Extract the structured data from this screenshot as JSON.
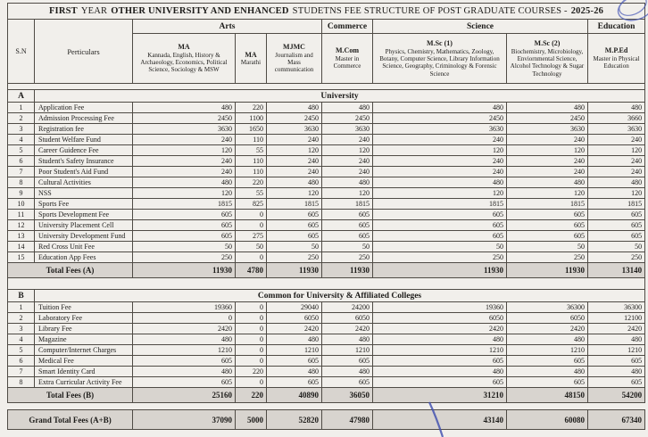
{
  "title": {
    "t1": "FIRST",
    "t2": "YEAR",
    "t3": "OTHER UNIVERSITY AND ENHANCED",
    "t4": "STUDETNS FEE STRUCTURE OF POST GRADUATE COURSES -",
    "t5": "2025-26"
  },
  "header": {
    "sn_label": "S.N",
    "particulars_label": "Perticulars",
    "group_arts": "Arts",
    "group_commerce": "Commerce",
    "group_science": "Science",
    "group_education": "Education",
    "courses": [
      {
        "title": "MA",
        "subtitle": "Kannada, English, History & Archaeology, Economics, Political Science, Sociology & MSW"
      },
      {
        "title": "MA",
        "subtitle": "Marathi"
      },
      {
        "title": "MJMC",
        "subtitle": "Journalism and Mass communication"
      },
      {
        "title": "M.Com",
        "subtitle": "Master in Commerce"
      },
      {
        "title": "M.Sc (1)",
        "subtitle": "Physics, Chemistry, Mathematics, Zoology, Botany, Computer Science, Library Information Science, Geography, Criminology & Forensic Science"
      },
      {
        "title": "M.Sc (2)",
        "subtitle": "Biochemistry, Microbiology, Enviornmental Science, Alcohol Technology & Sugar Technology"
      },
      {
        "title": "M.P.Ed",
        "subtitle": "Master in Physical Education"
      }
    ]
  },
  "section_a": {
    "code": "A",
    "heading": "University",
    "rows": [
      {
        "sn": "1",
        "label": "Application Fee",
        "values": [
          "480",
          "220",
          "480",
          "480",
          "480",
          "480",
          "480"
        ]
      },
      {
        "sn": "2",
        "label": "Admission Processing Fee",
        "values": [
          "2450",
          "1100",
          "2450",
          "2450",
          "2450",
          "2450",
          "3660"
        ]
      },
      {
        "sn": "3",
        "label": "Registration fee",
        "values": [
          "3630",
          "1650",
          "3630",
          "3630",
          "3630",
          "3630",
          "3630"
        ]
      },
      {
        "sn": "4",
        "label": "Student Welfare Fund",
        "values": [
          "240",
          "110",
          "240",
          "240",
          "240",
          "240",
          "240"
        ]
      },
      {
        "sn": "5",
        "label": "Career Guidence Fee",
        "values": [
          "120",
          "55",
          "120",
          "120",
          "120",
          "120",
          "120"
        ]
      },
      {
        "sn": "6",
        "label": "Student's Safety Insurance",
        "values": [
          "240",
          "110",
          "240",
          "240",
          "240",
          "240",
          "240"
        ]
      },
      {
        "sn": "7",
        "label": "Poor Student's Aid Fund",
        "values": [
          "240",
          "110",
          "240",
          "240",
          "240",
          "240",
          "240"
        ]
      },
      {
        "sn": "8",
        "label": "Cultural Activities",
        "values": [
          "480",
          "220",
          "480",
          "480",
          "480",
          "480",
          "480"
        ]
      },
      {
        "sn": "9",
        "label": "NSS",
        "values": [
          "120",
          "55",
          "120",
          "120",
          "120",
          "120",
          "120"
        ]
      },
      {
        "sn": "10",
        "label": "Sports Fee",
        "values": [
          "1815",
          "825",
          "1815",
          "1815",
          "1815",
          "1815",
          "1815"
        ]
      },
      {
        "sn": "11",
        "label": "Sports Development Fee",
        "values": [
          "605",
          "0",
          "605",
          "605",
          "605",
          "605",
          "605"
        ]
      },
      {
        "sn": "12",
        "label": "University Placement Cell",
        "values": [
          "605",
          "0",
          "605",
          "605",
          "605",
          "605",
          "605"
        ]
      },
      {
        "sn": "13",
        "label": "University Development Fund",
        "values": [
          "605",
          "275",
          "605",
          "605",
          "605",
          "605",
          "605"
        ]
      },
      {
        "sn": "14",
        "label": "Red Cross Unit Fee",
        "values": [
          "50",
          "50",
          "50",
          "50",
          "50",
          "50",
          "50"
        ]
      },
      {
        "sn": "15",
        "label": "Education App Fees",
        "values": [
          "250",
          "0",
          "250",
          "250",
          "250",
          "250",
          "250"
        ]
      }
    ],
    "total_label": "Total Fees (A)",
    "total_values": [
      "11930",
      "4780",
      "11930",
      "11930",
      "11930",
      "11930",
      "13140"
    ]
  },
  "section_b": {
    "code": "B",
    "heading": "Common for University & Affiliated Colleges",
    "rows": [
      {
        "sn": "1",
        "label": "Tuition Fee",
        "values": [
          "19360",
          "0",
          "29040",
          "24200",
          "19360",
          "36300",
          "36300"
        ]
      },
      {
        "sn": "2",
        "label": "Laboratory Fee",
        "values": [
          "0",
          "0",
          "6050",
          "6050",
          "6050",
          "6050",
          "12100"
        ]
      },
      {
        "sn": "3",
        "label": "Library Fee",
        "values": [
          "2420",
          "0",
          "2420",
          "2420",
          "2420",
          "2420",
          "2420"
        ]
      },
      {
        "sn": "4",
        "label": "Magazine",
        "values": [
          "480",
          "0",
          "480",
          "480",
          "480",
          "480",
          "480"
        ]
      },
      {
        "sn": "5",
        "label": "Computer/Internet Charges",
        "values": [
          "1210",
          "0",
          "1210",
          "1210",
          "1210",
          "1210",
          "1210"
        ]
      },
      {
        "sn": "6",
        "label": "Medical Fee",
        "values": [
          "605",
          "0",
          "605",
          "605",
          "605",
          "605",
          "605"
        ]
      },
      {
        "sn": "7",
        "label": "Smart Identity Card",
        "values": [
          "480",
          "220",
          "480",
          "480",
          "480",
          "480",
          "480"
        ]
      },
      {
        "sn": "8",
        "label": "Extra Curricular Activity Fee",
        "values": [
          "605",
          "0",
          "605",
          "605",
          "605",
          "605",
          "605"
        ]
      }
    ],
    "total_label": "Total Fees (B)",
    "total_values": [
      "25160",
      "220",
      "40890",
      "36050",
      "31210",
      "48150",
      "54200"
    ]
  },
  "grand_total": {
    "label": "Grand Total Fees (A+B)",
    "values": [
      "37090",
      "5000",
      "52820",
      "47980",
      "43140",
      "60080",
      "67340"
    ]
  },
  "colors": {
    "total_row_shade": "#d8d4cf",
    "paper": "#f1efeb",
    "pen_mark_blue": "#4353b5"
  }
}
